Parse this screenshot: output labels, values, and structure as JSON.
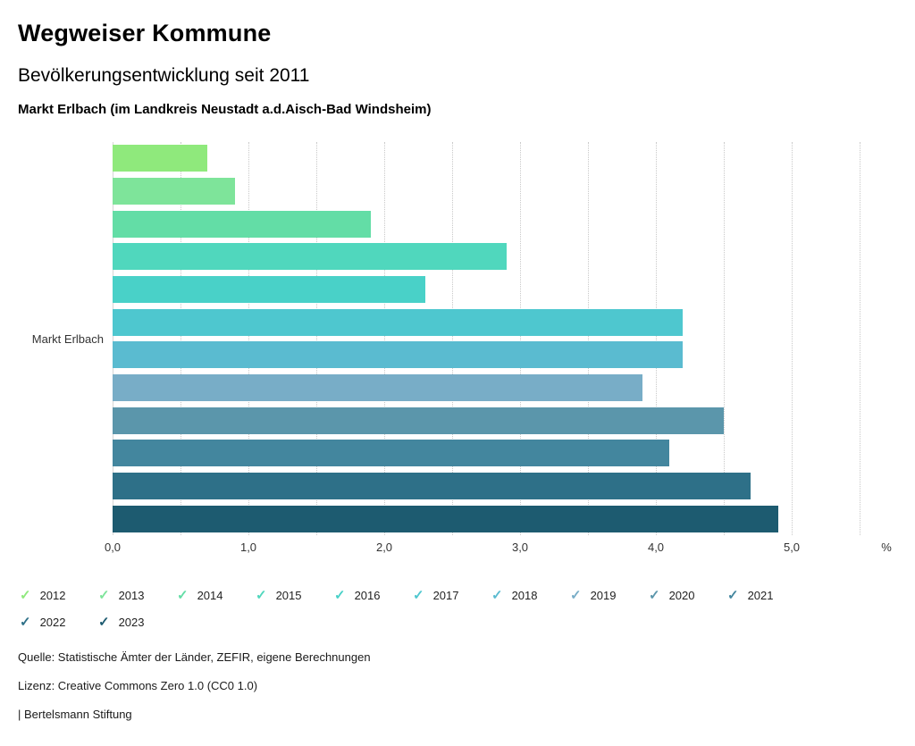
{
  "header": {
    "title": "Wegweiser Kommune",
    "subtitle": "Bevölkerungsentwicklung seit 2011",
    "region_line": "Markt Erlbach (im Landkreis Neustadt a.d.Aisch-Bad Windsheim)"
  },
  "chart_data": {
    "type": "bar",
    "orientation": "horizontal",
    "title": "Bevölkerungsentwicklung seit 2011",
    "category": "Markt Erlbach",
    "unit": "%",
    "xlim": [
      0,
      5.5
    ],
    "gridline_step": 0.5,
    "grid": "dotted-vertical",
    "legend_position": "bottom",
    "x_ticks": [
      {
        "label": "0,0",
        "value": 0
      },
      {
        "label": "1,0",
        "value": 1
      },
      {
        "label": "2,0",
        "value": 2
      },
      {
        "label": "3,0",
        "value": 3
      },
      {
        "label": "4,0",
        "value": 4
      },
      {
        "label": "5,0",
        "value": 5
      }
    ],
    "series": [
      {
        "year": "2012",
        "value": 0.7,
        "color": "#8fe97c"
      },
      {
        "year": "2013",
        "value": 0.9,
        "color": "#7ee49a"
      },
      {
        "year": "2014",
        "value": 1.9,
        "color": "#63dda6"
      },
      {
        "year": "2015",
        "value": 2.9,
        "color": "#50d7bd"
      },
      {
        "year": "2016",
        "value": 2.3,
        "color": "#49d1c8"
      },
      {
        "year": "2017",
        "value": 4.2,
        "color": "#4ec7cf"
      },
      {
        "year": "2018",
        "value": 4.2,
        "color": "#5abbd0"
      },
      {
        "year": "2019",
        "value": 3.9,
        "color": "#78adc7"
      },
      {
        "year": "2020",
        "value": 4.5,
        "color": "#5b96ab"
      },
      {
        "year": "2021",
        "value": 4.1,
        "color": "#43869e"
      },
      {
        "year": "2022",
        "value": 4.7,
        "color": "#2e7088"
      },
      {
        "year": "2023",
        "value": 4.9,
        "color": "#1d5b70"
      }
    ]
  },
  "footer": {
    "source": "Quelle: Statistische Ämter der Länder, ZEFIR, eigene Berechnungen",
    "license": "Lizenz: Creative Commons Zero 1.0 (CC0 1.0)",
    "brand": "| Bertelsmann Stiftung"
  }
}
